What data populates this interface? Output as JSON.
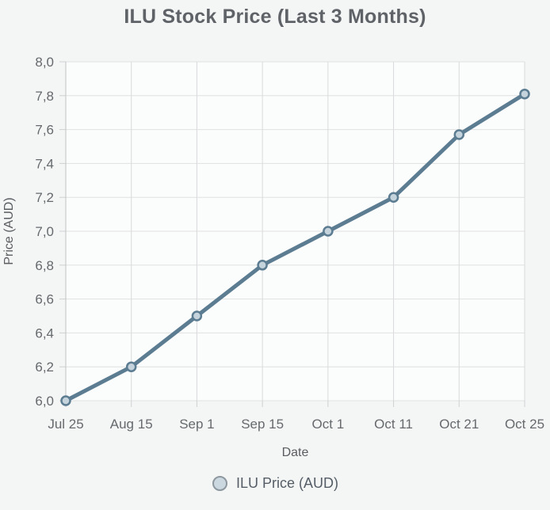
{
  "chart_data": {
    "type": "line",
    "title": "ILU Stock Price (Last 3 Months)",
    "xlabel": "Date",
    "ylabel": "Price (AUD)",
    "categories": [
      "Jul 25",
      "Aug 15",
      "Sep 1",
      "Sep 15",
      "Oct 1",
      "Oct 11",
      "Oct 21",
      "Oct 25"
    ],
    "series": [
      {
        "name": "ILU Price (AUD)",
        "values": [
          6.0,
          6.2,
          6.5,
          6.8,
          7.0,
          7.2,
          7.57,
          7.81
        ]
      }
    ],
    "ylim": [
      6.0,
      8.0
    ],
    "ytick_step": 0.2,
    "ytick_labels": [
      "6,0",
      "6,2",
      "6,4",
      "6,6",
      "6,8",
      "7,0",
      "7,2",
      "7,4",
      "7,6",
      "7,8",
      "8,0"
    ],
    "decimal_separator": ",",
    "grid": true,
    "legend_position": "bottom",
    "colors": {
      "line": "#5b7c91",
      "marker_fill": "#c5d3dc",
      "marker_stroke": "#567citizen",
      "page_background": "#f4f5f5",
      "plot_background": "#fbfcfc",
      "h_gridline": "#e0e1e1",
      "v_gridline": "#d9dadb",
      "axis_line": "#c0c2c4",
      "tick_mark": "#cfd1d2",
      "tick_text": "#666a6d",
      "axis_title_text": "#5a5e61",
      "title_text": "#5f6368",
      "legend_text": "#555e66",
      "legend_marker_fill": "#ccd8df",
      "legend_marker_stroke": "#8d979e"
    }
  }
}
